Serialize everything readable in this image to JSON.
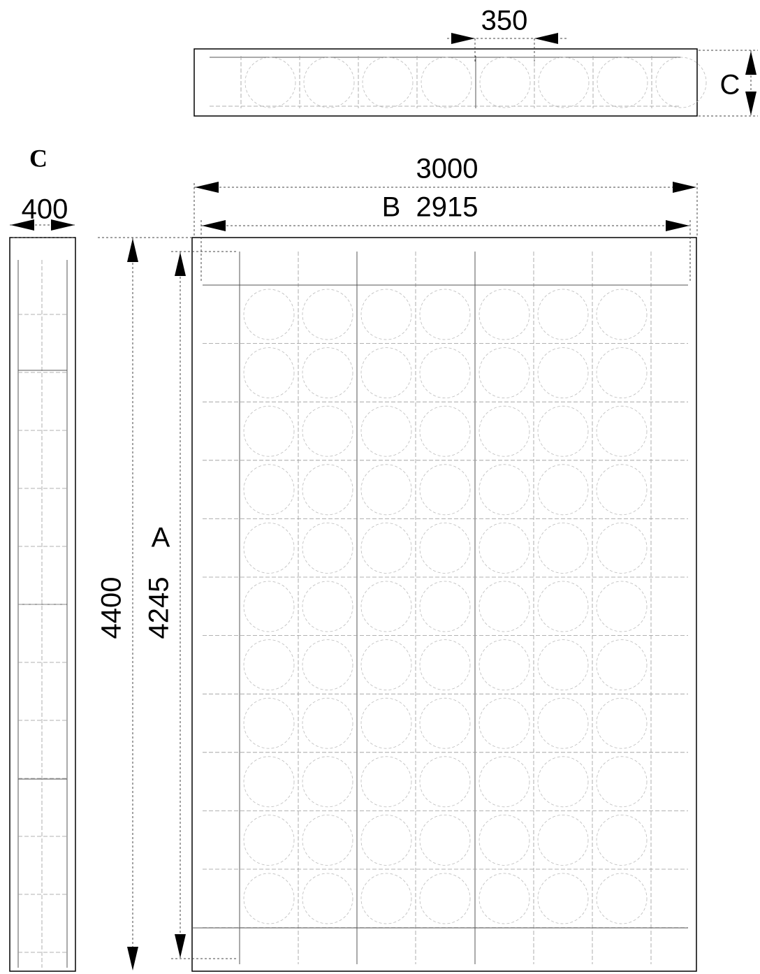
{
  "top_view": {
    "dimension": 350,
    "height_label": "C"
  },
  "side_view": {
    "title": "C",
    "width": 400
  },
  "main_view": {
    "width_outer": 3000,
    "width_inner_label": "B",
    "width_inner": 2915,
    "height_outer": 4400,
    "height_inner_label": "A",
    "height_inner": 4245
  }
}
